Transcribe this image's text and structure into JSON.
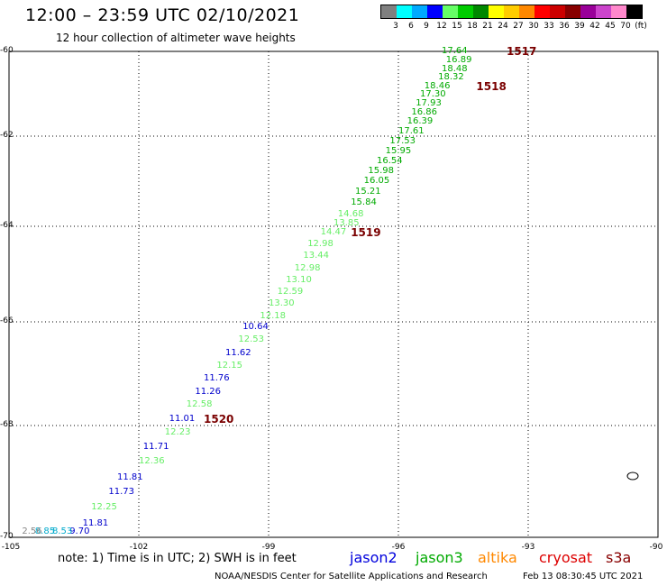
{
  "title": "12:00 – 23:59 UTC 02/10/2021",
  "subtitle": "12 hour collection of altimeter wave heights",
  "scale": {
    "colors": [
      "#808080",
      "#00ffff",
      "#00aaff",
      "#0000ff",
      "#66ff66",
      "#00cc00",
      "#008800",
      "#ffff00",
      "#ffcc00",
      "#ff8800",
      "#ff0000",
      "#cc0000",
      "#880000",
      "#990099",
      "#cc44cc",
      "#ff88cc",
      "#000000"
    ],
    "labels": [
      "3",
      "6",
      "9",
      "12",
      "15",
      "18",
      "21",
      "24",
      "27",
      "30",
      "33",
      "36",
      "39",
      "42",
      "45",
      "70",
      "(ft)"
    ]
  },
  "axes": {
    "lat_labels": [
      "-60",
      "-62",
      "-64",
      "-66",
      "-68",
      "-70"
    ],
    "lon_labels": [
      "-105",
      "-102",
      "-99",
      "-96",
      "-93",
      "-90"
    ],
    "lat_range": [
      -70,
      -60
    ],
    "lon_range": [
      -105,
      -90
    ]
  },
  "observations": [
    {
      "v": "17.64",
      "lon": -95.0,
      "lat": -60.0,
      "color": "#00aa00"
    },
    {
      "v": "16.89",
      "lon": -94.9,
      "lat": -60.22,
      "color": "#00aa00"
    },
    {
      "v": "18.48",
      "lon": -95.0,
      "lat": -60.42,
      "color": "#00aa00"
    },
    {
      "v": "18.32",
      "lon": -95.08,
      "lat": -60.62,
      "color": "#00aa00"
    },
    {
      "v": "18.46",
      "lon": -95.4,
      "lat": -60.82,
      "color": "#00aa00"
    },
    {
      "v": "17.30",
      "lon": -95.5,
      "lat": -61.03,
      "color": "#00aa00"
    },
    {
      "v": "17.93",
      "lon": -95.6,
      "lat": -61.24,
      "color": "#00aa00"
    },
    {
      "v": "16.86",
      "lon": -95.7,
      "lat": -61.45,
      "color": "#00aa00"
    },
    {
      "v": "16.39",
      "lon": -95.8,
      "lat": -61.67,
      "color": "#00aa00"
    },
    {
      "v": "17.61",
      "lon": -96.0,
      "lat": -61.9,
      "color": "#00aa00"
    },
    {
      "v": "17.53",
      "lon": -96.2,
      "lat": -62.12,
      "color": "#00aa00"
    },
    {
      "v": "15.95",
      "lon": -96.3,
      "lat": -62.33,
      "color": "#00aa00"
    },
    {
      "v": "16.54",
      "lon": -96.5,
      "lat": -62.55,
      "color": "#00aa00"
    },
    {
      "v": "15.98",
      "lon": -96.7,
      "lat": -62.78,
      "color": "#00aa00"
    },
    {
      "v": "16.05",
      "lon": -96.8,
      "lat": -63.0,
      "color": "#00aa00"
    },
    {
      "v": "15.21",
      "lon": -97.0,
      "lat": -63.23,
      "color": "#00aa00"
    },
    {
      "v": "15.84",
      "lon": -97.1,
      "lat": -63.48,
      "color": "#00aa00"
    },
    {
      "v": "14.68",
      "lon": -97.4,
      "lat": -63.73,
      "color": "#66ee66"
    },
    {
      "v": "13.85",
      "lon": -97.5,
      "lat": -63.93,
      "color": "#66ee66"
    },
    {
      "v": "14.47",
      "lon": -97.8,
      "lat": -64.13,
      "color": "#66ee66"
    },
    {
      "v": "12.98",
      "lon": -98.1,
      "lat": -64.37,
      "color": "#66ee66"
    },
    {
      "v": "13.44",
      "lon": -98.2,
      "lat": -64.63,
      "color": "#66ee66"
    },
    {
      "v": "12.98",
      "lon": -98.4,
      "lat": -64.88,
      "color": "#66ee66"
    },
    {
      "v": "13.10",
      "lon": -98.6,
      "lat": -65.13,
      "color": "#66ee66"
    },
    {
      "v": "12.59",
      "lon": -98.8,
      "lat": -65.38,
      "color": "#66ee66"
    },
    {
      "v": "13.30",
      "lon": -99.0,
      "lat": -65.63,
      "color": "#66ee66"
    },
    {
      "v": "12.18",
      "lon": -99.2,
      "lat": -65.88,
      "color": "#66ee66"
    },
    {
      "v": "10.64",
      "lon": -99.6,
      "lat": -66.1,
      "color": "#0000cc"
    },
    {
      "v": "12.53",
      "lon": -99.7,
      "lat": -66.35,
      "color": "#66ee66"
    },
    {
      "v": "11.62",
      "lon": -100.0,
      "lat": -66.6,
      "color": "#0000cc"
    },
    {
      "v": "12.15",
      "lon": -100.2,
      "lat": -66.85,
      "color": "#66ee66"
    },
    {
      "v": "11.76",
      "lon": -100.5,
      "lat": -67.1,
      "color": "#0000cc"
    },
    {
      "v": "11.26",
      "lon": -100.7,
      "lat": -67.35,
      "color": "#0000cc"
    },
    {
      "v": "12.58",
      "lon": -100.9,
      "lat": -67.6,
      "color": "#66ee66"
    },
    {
      "v": "11.01",
      "lon": -101.3,
      "lat": -67.87,
      "color": "#0000cc"
    },
    {
      "v": "12.23",
      "lon": -101.4,
      "lat": -68.13,
      "color": "#66ee66"
    },
    {
      "v": "11.71",
      "lon": -101.9,
      "lat": -68.38,
      "color": "#0000cc"
    },
    {
      "v": "12.36",
      "lon": -102.0,
      "lat": -68.65,
      "color": "#66ee66"
    },
    {
      "v": "11.81",
      "lon": -102.5,
      "lat": -68.93,
      "color": "#0000cc"
    },
    {
      "v": "11.73",
      "lon": -102.7,
      "lat": -69.2,
      "color": "#0000cc"
    },
    {
      "v": "12.25",
      "lon": -103.1,
      "lat": -69.47,
      "color": "#66ee66"
    },
    {
      "v": "11.81",
      "lon": -103.3,
      "lat": -69.75,
      "color": "#0000cc"
    },
    {
      "v": "9.70",
      "lon": -103.6,
      "lat": -70.03,
      "color": "#0000cc"
    },
    {
      "v": "8.53",
      "lon": -104.0,
      "lat": -70.32,
      "color": "#00aacc"
    },
    {
      "v": "8.85",
      "lon": -104.4,
      "lat": -70.6,
      "color": "#00aacc"
    },
    {
      "v": "2.56",
      "lon": -104.7,
      "lat": -70.9,
      "color": "#888888"
    }
  ],
  "passes": [
    {
      "label": "1517",
      "lon": -93.5,
      "lat": -60.0
    },
    {
      "label": "1518",
      "lon": -94.2,
      "lat": -60.82
    },
    {
      "label": "1519",
      "lon": -97.1,
      "lat": -64.13
    },
    {
      "label": "1520",
      "lon": -100.5,
      "lat": -67.87
    }
  ],
  "note": "note:  1) Time is in UTC; 2) SWH is in feet",
  "satellites": [
    {
      "name": "jason2",
      "color": "#0000dd"
    },
    {
      "name": "jason3",
      "color": "#00aa00"
    },
    {
      "name": "altika",
      "color": "#ff8800"
    },
    {
      "name": "cryosat",
      "color": "#dd0000"
    },
    {
      "name": "s3a",
      "color": "#880000"
    }
  ],
  "credit": "NOAA/NESDIS Center for Satellite Applications and Research",
  "timestamp": "Feb 13 08:30:45 UTC 2021"
}
